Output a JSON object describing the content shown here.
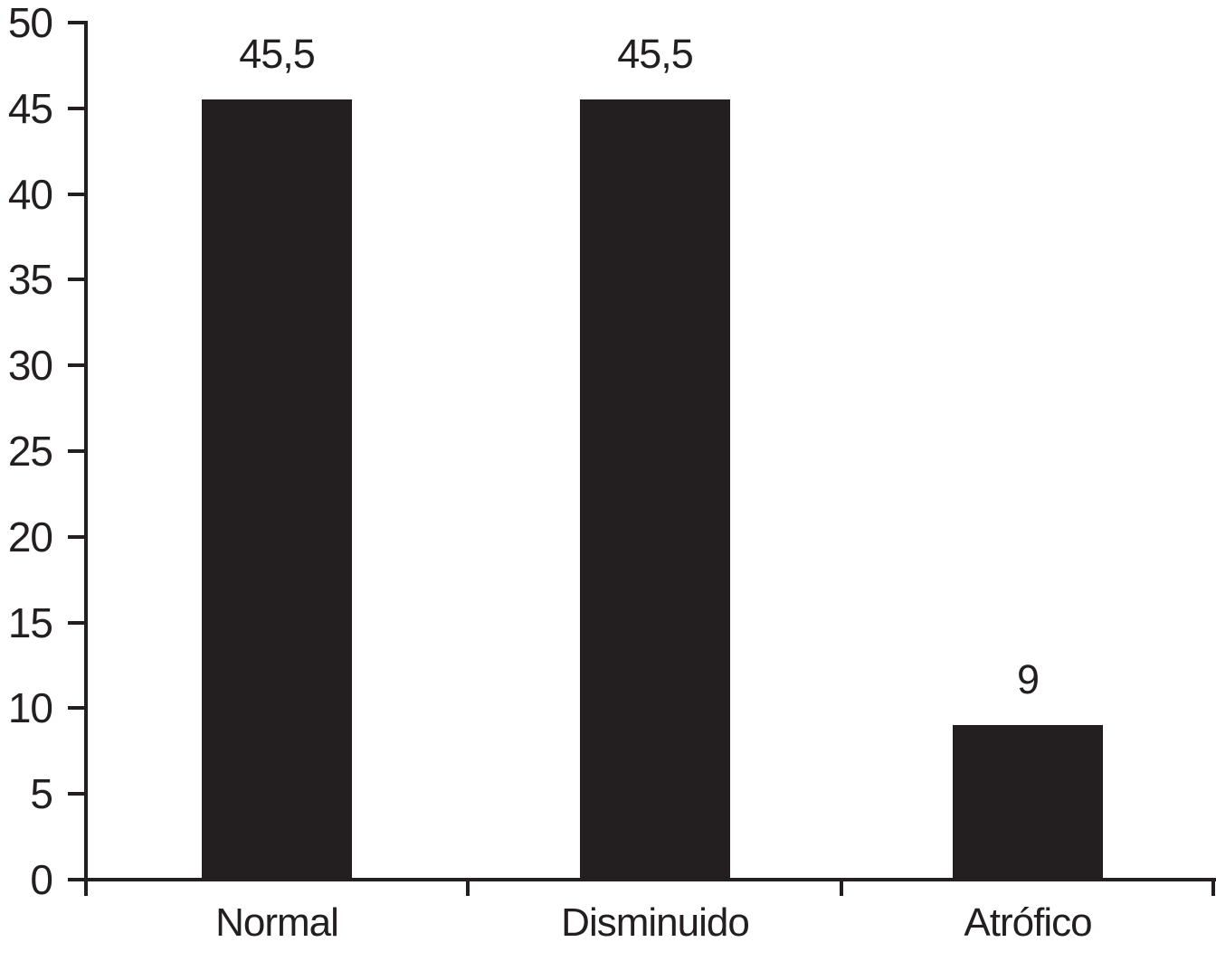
{
  "chart_data": {
    "type": "bar",
    "title": "",
    "categories": [
      "Normal",
      "Disminuido",
      "Atrófico"
    ],
    "values": [
      45.5,
      45.5,
      9
    ],
    "value_labels": [
      "45,5",
      "45,5",
      "9"
    ],
    "ylim": [
      0,
      50
    ],
    "ytick_step": 5,
    "ytick_labels": [
      "0",
      "5",
      "10",
      "15",
      "20",
      "25",
      "30",
      "35",
      "40",
      "45",
      "50"
    ],
    "xlabel": "",
    "ylabel": "",
    "grid": false,
    "legend": false,
    "colors": {
      "bar": "#231f20",
      "axis": "#231f20",
      "text": "#231f20",
      "background": "#ffffff"
    }
  }
}
